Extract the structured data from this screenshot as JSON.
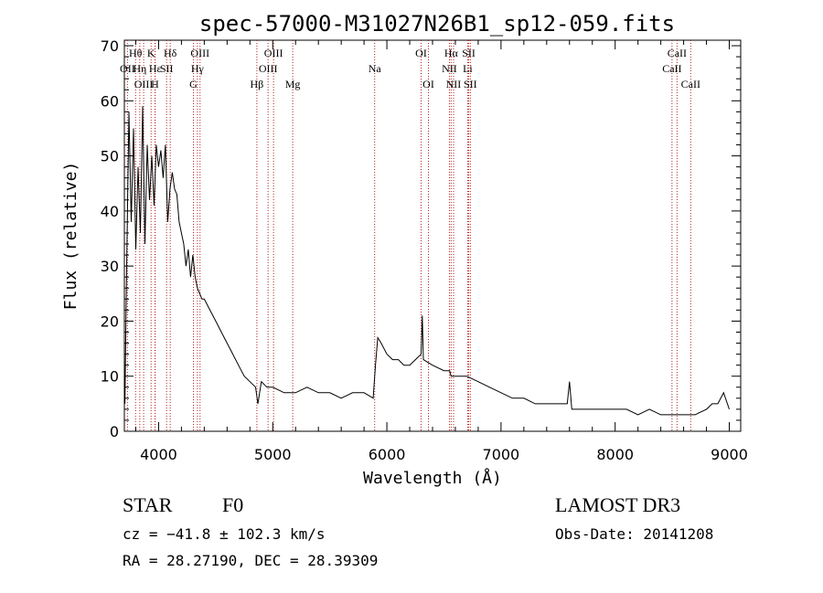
{
  "chart_data": {
    "type": "line",
    "title": "spec-57000-M31027N26B1_sp12-059.fits",
    "xlabel": "Wavelength (Å)",
    "ylabel": "Flux (relative)",
    "xlim": [
      3700,
      9100
    ],
    "ylim": [
      0,
      71
    ],
    "x_ticks": [
      4000,
      5000,
      6000,
      7000,
      8000,
      9000
    ],
    "y_ticks": [
      0,
      10,
      20,
      30,
      40,
      50,
      60,
      70
    ],
    "grid": false,
    "series": [
      {
        "color": "#000000",
        "x": [
          3705,
          3720,
          3740,
          3760,
          3780,
          3800,
          3820,
          3840,
          3860,
          3880,
          3900,
          3920,
          3940,
          3960,
          3980,
          4000,
          4020,
          4040,
          4060,
          4080,
          4100,
          4120,
          4140,
          4160,
          4180,
          4200,
          4220,
          4240,
          4260,
          4280,
          4300,
          4320,
          4340,
          4360,
          4380,
          4400,
          4450,
          4500,
          4550,
          4600,
          4650,
          4700,
          4750,
          4800,
          4850,
          4870,
          4900,
          4950,
          5000,
          5100,
          5200,
          5300,
          5400,
          5500,
          5600,
          5700,
          5800,
          5880,
          5900,
          5920,
          5950,
          6000,
          6050,
          6100,
          6150,
          6200,
          6250,
          6300,
          6310,
          6320,
          6400,
          6500,
          6550,
          6563,
          6600,
          6700,
          6800,
          6900,
          7000,
          7100,
          7200,
          7300,
          7400,
          7500,
          7580,
          7600,
          7620,
          7700,
          7800,
          7900,
          8000,
          8100,
          8200,
          8300,
          8400,
          8500,
          8600,
          8700,
          8800,
          8850,
          8900,
          8950,
          9000
        ],
        "y": [
          5,
          30,
          58,
          38,
          55,
          33,
          48,
          36,
          59,
          34,
          52,
          42,
          50,
          41,
          52,
          48,
          51,
          46,
          52,
          38,
          44,
          47,
          44,
          43,
          38,
          36,
          34,
          30,
          33,
          28,
          32,
          28,
          26,
          25,
          24,
          24,
          22,
          20,
          18,
          16,
          14,
          12,
          10,
          9,
          8,
          5,
          9,
          8,
          8,
          7,
          7,
          8,
          7,
          7,
          6,
          7,
          7,
          6,
          12,
          17,
          16,
          14,
          13,
          13,
          12,
          12,
          13,
          14,
          21,
          13,
          12,
          11,
          11,
          10,
          10,
          10,
          9,
          8,
          7,
          6,
          6,
          5,
          5,
          5,
          5,
          9,
          4,
          4,
          4,
          4,
          4,
          4,
          3,
          4,
          3,
          3,
          3,
          3,
          4,
          5,
          5,
          7,
          4
        ]
      }
    ],
    "emission_lines": [
      {
        "label": "Hθ",
        "wl": 3798,
        "row": 1
      },
      {
        "label": "OII",
        "wl": 3727,
        "row": 2
      },
      {
        "label": "OIII",
        "wl": 3869,
        "row": 3
      },
      {
        "label": "K",
        "wl": 3934,
        "row": 1
      },
      {
        "label": "H",
        "wl": 3968,
        "row": 3
      },
      {
        "label": "Hη",
        "wl": 3835,
        "row": 2
      },
      {
        "label": "Hε",
        "wl": 3970,
        "row": 2
      },
      {
        "label": "SII",
        "wl": 4070,
        "row": 2
      },
      {
        "label": "Hδ",
        "wl": 4102,
        "row": 1
      },
      {
        "label": "OIII",
        "wl": 4363,
        "row": 1
      },
      {
        "label": "Hγ",
        "wl": 4340,
        "row": 2
      },
      {
        "label": "G",
        "wl": 4305,
        "row": 3
      },
      {
        "label": "Hβ",
        "wl": 4861,
        "row": 3
      },
      {
        "label": "OIII",
        "wl": 5007,
        "row": 1
      },
      {
        "label": "OIII",
        "wl": 4959,
        "row": 2
      },
      {
        "label": "Mg",
        "wl": 5175,
        "row": 3
      },
      {
        "label": "Na",
        "wl": 5893,
        "row": 2
      },
      {
        "label": "OI",
        "wl": 6300,
        "row": 1
      },
      {
        "label": "OI",
        "wl": 6364,
        "row": 3
      },
      {
        "label": "Hα",
        "wl": 6563,
        "row": 1
      },
      {
        "label": "NII",
        "wl": 6548,
        "row": 2
      },
      {
        "label": "NII",
        "wl": 6584,
        "row": 3
      },
      {
        "label": "SII",
        "wl": 6717,
        "row": 1
      },
      {
        "label": "Li",
        "wl": 6708,
        "row": 2
      },
      {
        "label": "SII",
        "wl": 6731,
        "row": 3
      },
      {
        "label": "CaII",
        "wl": 8542,
        "row": 1
      },
      {
        "label": "CaII",
        "wl": 8498,
        "row": 2
      },
      {
        "label": "CaII",
        "wl": 8662,
        "row": 3
      }
    ],
    "line_marker_color": "#b22222"
  },
  "info": {
    "object_class": "STAR",
    "subclass": "F0",
    "survey": "LAMOST DR3",
    "cz": "cz = −41.8 ± 102.3 km/s",
    "obs_date": "Obs-Date: 20141208",
    "coords": "RA =  28.27190, DEC =  28.39309"
  }
}
